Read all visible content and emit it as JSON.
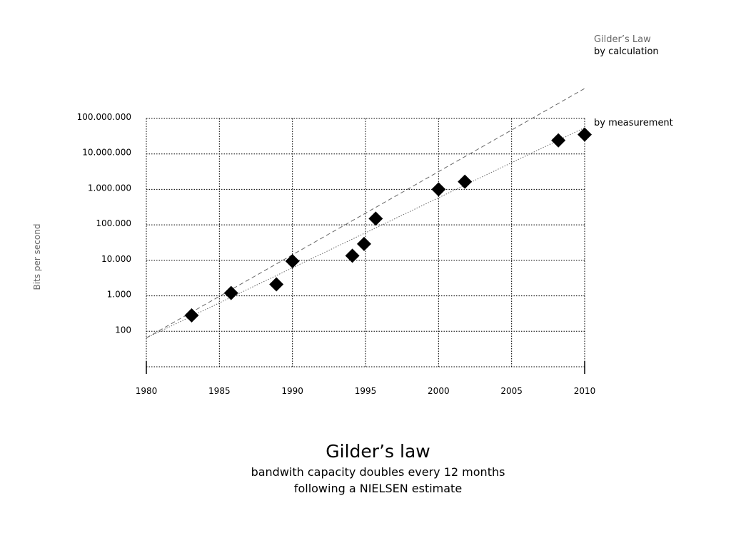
{
  "chart_data": {
    "type": "scatter",
    "title": "Gilder’s law",
    "subtitle_lines": [
      "bandwith capacity doubles every 12 months",
      "following a NIELSEN estimate"
    ],
    "xlabel": "",
    "ylabel": "Bits per second",
    "x_ticks": [
      "1980",
      "1985",
      "1990",
      "1995",
      "2000",
      "2005",
      "2010"
    ],
    "y_ticks": [
      "100",
      "1.000",
      "10.000",
      "100.000",
      "1.000.000",
      "10.000.000",
      "100.000.000"
    ],
    "xlim": [
      1980,
      2010
    ],
    "ylim": [
      10,
      100000000
    ],
    "y_scale": "log",
    "grid": true,
    "series": [
      {
        "name": "by measurement",
        "marker": "diamond",
        "points": [
          {
            "x": 1983.1,
            "y": 280
          },
          {
            "x": 1985.8,
            "y": 1200
          },
          {
            "x": 1988.9,
            "y": 2100
          },
          {
            "x": 1990.0,
            "y": 9500
          },
          {
            "x": 1994.1,
            "y": 13500
          },
          {
            "x": 1994.9,
            "y": 29000
          },
          {
            "x": 1995.7,
            "y": 150000
          },
          {
            "x": 2000.0,
            "y": 1000000
          },
          {
            "x": 2001.8,
            "y": 1650000
          },
          {
            "x": 2008.2,
            "y": 24000000
          },
          {
            "x": 2010.0,
            "y": 35000000
          }
        ]
      }
    ],
    "trend_lines": [
      {
        "label": "by calculation",
        "style": "dashed",
        "points": [
          {
            "x": 1980,
            "y": 65
          },
          {
            "x": 2010,
            "y": 700000000
          }
        ]
      },
      {
        "label": "by measurement",
        "style": "dotted",
        "points": [
          {
            "x": 1980,
            "y": 65
          },
          {
            "x": 2010,
            "y": 55000000
          }
        ]
      }
    ],
    "annotations": {
      "law_label": "Gilder’s Law",
      "calculation_label": "by calculation",
      "measurement_label": "by measurement"
    },
    "colors": {
      "marker": "#000000",
      "grid": "#000000",
      "dashed_line": "#666666",
      "dotted_line": "#666666",
      "axis_title": "#666666"
    }
  }
}
